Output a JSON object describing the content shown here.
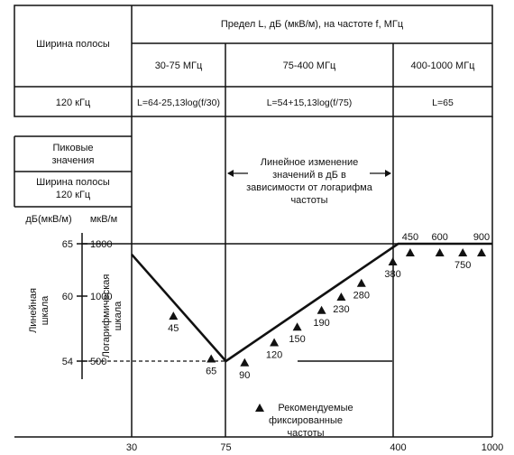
{
  "header": {
    "bandwidth_title": "Ширина полосы",
    "limit_title": "Предел L, дБ (мкВ/м), на частоте f, МГц",
    "ranges": [
      "30-75 МГц",
      "75-400 МГц",
      "400-1000 МГц"
    ],
    "bandwidth_value": "120 кГц",
    "formulas": [
      "L=64-25,13log(f/30)",
      "L=54+15,13log(f/75)",
      "L=65"
    ]
  },
  "legend_boxes": {
    "peak_values": [
      "Пиковые",
      "значения"
    ],
    "bandwidth": [
      "Ширина полосы",
      "120 кГц"
    ]
  },
  "axis": {
    "db_unit": "дБ(мкВ/м)",
    "uv_unit": "мкВ/м",
    "db_ticks": [
      "65",
      "60",
      "54"
    ],
    "uv_ticks": [
      "1800",
      "1000",
      "500"
    ],
    "linear_scale_label": [
      "Линейная",
      "шкала"
    ],
    "log_scale_label": [
      "Логарифмическая",
      "шкала"
    ],
    "x_ticks": [
      "30",
      "75",
      "400",
      "1000"
    ]
  },
  "annotation": [
    "Линейное изменение",
    "значений в дБ в",
    "зависимости от логарифма",
    "частоты"
  ],
  "recommended_legend": [
    "Рекомендуемые",
    "фиксированные",
    "частоты"
  ],
  "chart_data": {
    "type": "line",
    "x_scale": "log",
    "x_range": [
      30,
      1000
    ],
    "y_range_db": [
      54,
      65
    ],
    "series": [
      {
        "name": "",
        "x": [
          30,
          75,
          400,
          1000
        ],
        "y": [
          64,
          54,
          65,
          65
        ]
      }
    ],
    "recommended_frequencies": [
      45,
      65,
      90,
      120,
      150,
      190,
      230,
      280,
      380,
      450,
      600,
      750,
      900
    ]
  }
}
